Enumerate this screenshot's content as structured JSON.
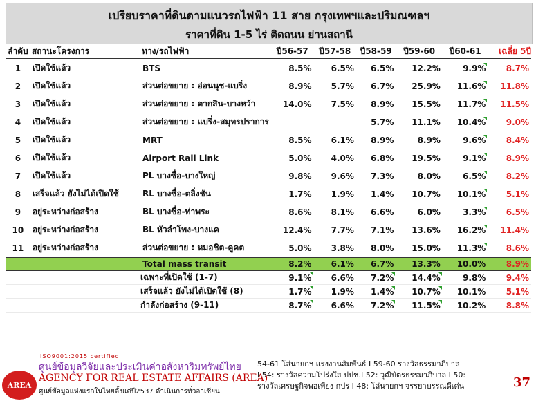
{
  "title": {
    "line1": "เปรียบราคาที่ดินตามแนวรถไฟฟ้า 11 สาย กรุงเทพฯและปริมณฑลฯ",
    "line2": "ราคาที่ดิน 1-5 ไร่ ติดถนน ย่านสถานี"
  },
  "table": {
    "headers": [
      "ลำดับ",
      "สถานะโครงการ",
      "ทาง/รถไฟฟ้า",
      "ปี56-57",
      "ปี57-58",
      "ปี58-59",
      "ปี59-60",
      "ปี60-61",
      "เฉลี่ย 5ปี"
    ],
    "rows": [
      {
        "no": "1",
        "status": "เปิดใช้แล้ว",
        "line": "BTS",
        "v": [
          "8.5%",
          "6.5%",
          "6.5%",
          "12.2%",
          "9.9%"
        ],
        "avg": "8.7%"
      },
      {
        "no": "2",
        "status": "เปิดใช้แล้ว",
        "line": "ส่วนต่อขยาย : อ่อนนุช-แบริ่ง",
        "v": [
          "8.9%",
          "5.7%",
          "6.7%",
          "25.9%",
          "11.6%"
        ],
        "avg": "11.8%"
      },
      {
        "no": "3",
        "status": "เปิดใช้แล้ว",
        "line": "ส่วนต่อขยาย : ตากสิน-บางหว้า",
        "v": [
          "14.0%",
          "7.5%",
          "8.9%",
          "15.5%",
          "11.7%"
        ],
        "avg": "11.5%"
      },
      {
        "no": "4",
        "status": "เปิดใช้แล้ว",
        "line": "ส่วนต่อขยาย : แบริ่ง-สมุทรปราการ",
        "v": [
          "",
          "",
          "5.7%",
          "11.1%",
          "10.4%"
        ],
        "avg": "9.0%"
      },
      {
        "no": "5",
        "status": "เปิดใช้แล้ว",
        "line": "MRT",
        "v": [
          "8.5%",
          "6.1%",
          "8.9%",
          "8.9%",
          "9.6%"
        ],
        "avg": "8.4%"
      },
      {
        "no": "6",
        "status": "เปิดใช้แล้ว",
        "line": "Airport Rail Link",
        "v": [
          "5.0%",
          "4.0%",
          "6.8%",
          "19.5%",
          "9.1%"
        ],
        "avg": "8.9%"
      },
      {
        "no": "7",
        "status": "เปิดใช้แล้ว",
        "line": "PL บางซื่อ-บางใหญ่",
        "v": [
          "9.8%",
          "9.6%",
          "7.3%",
          "8.0%",
          "6.5%"
        ],
        "avg": "8.2%"
      },
      {
        "no": "8",
        "status": "เสร็จแล้ว ยังไม่ได้เปิดใช้",
        "line": "RL บางซื่อ-ตลิ่งชัน",
        "v": [
          "1.7%",
          "1.9%",
          "1.4%",
          "10.7%",
          "10.1%"
        ],
        "avg": "5.1%"
      },
      {
        "no": "9",
        "status": "อยู่ระหว่างก่อสร้าง",
        "line": "BL บางซื่อ-ท่าพระ",
        "v": [
          "8.6%",
          "8.1%",
          "6.6%",
          "6.0%",
          "3.3%"
        ],
        "avg": "6.5%"
      },
      {
        "no": "10",
        "status": "อยู่ระหว่างก่อสร้าง",
        "line": "BL หัวลำโพง-บางแค",
        "v": [
          "12.4%",
          "7.7%",
          "7.1%",
          "13.6%",
          "16.2%"
        ],
        "avg": "11.4%"
      },
      {
        "no": "11",
        "status": "อยู่ระหว่างก่อสร้าง",
        "line": "ส่วนต่อขยาย : หมอชิต-คูคต",
        "v": [
          "5.0%",
          "3.8%",
          "8.0%",
          "15.0%",
          "11.3%"
        ],
        "avg": "8.6%"
      }
    ],
    "total": {
      "label": "Total mass transit",
      "v": [
        "8.2%",
        "6.1%",
        "6.7%",
        "13.3%",
        "10.0%"
      ],
      "avg": "8.9%"
    },
    "subtotals": [
      {
        "label": "เฉพาะที่เปิดใช้ (1-7)",
        "v": [
          "9.1%",
          "6.6%",
          "7.2%",
          "14.4%",
          "9.8%"
        ],
        "avg": "9.4%"
      },
      {
        "label": "เสร็จแล้ว ยังไม่ได้เปิดใช้ (8)",
        "v": [
          "1.7%",
          "1.9%",
          "1.4%",
          "10.7%",
          "10.1%"
        ],
        "avg": "5.1%"
      },
      {
        "label": "กำลังก่อสร้าง (9-11)",
        "v": [
          "8.7%",
          "6.6%",
          "7.2%",
          "11.5%",
          "10.2%"
        ],
        "avg": "8.8%"
      }
    ]
  },
  "footer": {
    "iso": "ISO9001:2015 certified",
    "logo_text": "AREA",
    "org_th": "ศูนย์ข้อมูลวิจัยและประเมินค่าอสังหาริมทรัพย์ไทย",
    "org_en": "AGENCY FOR REAL ESTATE AFFAIRS (AREA)",
    "org_since": "ศูนย์ข้อมูลแห่งแรกในไทยตั้งแต่ปี2537 ดำเนินการทั่วอาเซียน",
    "awards_line1": "54-61 โล่นายกฯ แรงงานสัมพันธ์ I 59-60 รางวัลธรรมาภิบาล",
    "awards_line2": "I 54: รางวัลความโปร่งใส ปปช.I 52: วุฒิบัตรธรรมาภิบาล I 50:",
    "awards_line3": "รางวัลเศรษฐกิจพอเพียง กปร I 48: โล่นายกฯ จรรยาบรรณดีเด่น",
    "page_number": "37"
  }
}
